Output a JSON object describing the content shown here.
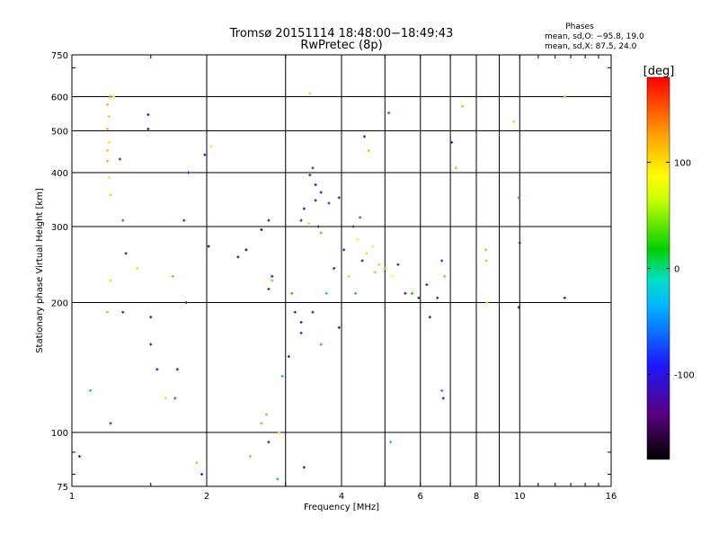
{
  "chart_data": {
    "type": "scatter",
    "title": "Tromsø 20151114 18:48:00−18:49:43",
    "subtitle": "RwPretec (8p)",
    "xlabel": "Frequency [MHz]",
    "ylabel": "Stationary phase Virtual Height [km]",
    "x_scale": "log",
    "y_scale": "log",
    "xlim": [
      1,
      16
    ],
    "ylim": [
      75,
      750
    ],
    "x_ticks": [
      1,
      2,
      4,
      6,
      8,
      10,
      16
    ],
    "x_minor_ticks": [
      3,
      5,
      7,
      9
    ],
    "y_ticks": [
      75,
      100,
      200,
      300,
      400,
      500,
      600,
      750
    ],
    "grid": true,
    "phase_info": {
      "title": "Phases",
      "line_o": "mean, sd,O: −95.8, 19.0",
      "line_x": "mean, sd,X:  87.5, 24.0"
    },
    "colorbar": {
      "label": "[deg]",
      "range": [
        -180,
        180
      ],
      "ticks": [
        100,
        0,
        -100
      ]
    },
    "points": [
      [
        1.04,
        88,
        -120
      ],
      [
        1.1,
        125,
        -30
      ],
      [
        1.22,
        105,
        -80
      ],
      [
        1.22,
        600,
        140
      ],
      [
        1.24,
        600,
        100
      ],
      [
        1.2,
        575,
        120
      ],
      [
        1.21,
        540,
        110
      ],
      [
        1.2,
        505,
        120
      ],
      [
        1.21,
        470,
        100
      ],
      [
        1.2,
        450,
        110
      ],
      [
        1.2,
        425,
        120
      ],
      [
        1.21,
        390,
        100
      ],
      [
        1.22,
        355,
        110
      ],
      [
        1.2,
        190,
        120
      ],
      [
        1.22,
        225,
        110
      ],
      [
        1.3,
        190,
        -100
      ],
      [
        1.28,
        430,
        -80
      ],
      [
        1.3,
        310,
        -60
      ],
      [
        1.32,
        260,
        -100
      ],
      [
        1.4,
        240,
        60
      ],
      [
        1.48,
        545,
        -130
      ],
      [
        1.48,
        505,
        -140
      ],
      [
        1.5,
        185,
        -120
      ],
      [
        1.5,
        160,
        -120
      ],
      [
        1.55,
        140,
        -100
      ],
      [
        1.62,
        120,
        100
      ],
      [
        1.7,
        120,
        -60
      ],
      [
        1.72,
        140,
        -110
      ],
      [
        1.68,
        230,
        40
      ],
      [
        1.78,
        310,
        -90
      ],
      [
        1.8,
        200,
        -110
      ],
      [
        1.82,
        400,
        -100
      ],
      [
        1.9,
        85,
        120
      ],
      [
        1.95,
        80,
        -130
      ],
      [
        1.98,
        440,
        -120
      ],
      [
        2.05,
        460,
        90
      ],
      [
        2.02,
        270,
        -150
      ],
      [
        2.5,
        88,
        130
      ],
      [
        2.65,
        105,
        130
      ],
      [
        2.72,
        110,
        130
      ],
      [
        2.75,
        95,
        -100
      ],
      [
        2.9,
        100,
        110
      ],
      [
        2.88,
        78,
        -40
      ],
      [
        3.3,
        83,
        -100
      ],
      [
        3.4,
        610,
        60
      ],
      [
        4.5,
        485,
        -110
      ],
      [
        4.6,
        450,
        120
      ],
      [
        5.1,
        550,
        -60
      ],
      [
        5.15,
        95,
        -30
      ],
      [
        6.7,
        125,
        -50
      ],
      [
        6.75,
        120,
        -100
      ],
      [
        7.05,
        470,
        -110
      ],
      [
        7.2,
        410,
        120
      ],
      [
        7.45,
        570,
        120
      ],
      [
        8.4,
        265,
        120
      ],
      [
        8.42,
        250,
        120
      ],
      [
        8.45,
        200,
        60
      ],
      [
        9.7,
        525,
        110
      ],
      [
        9.95,
        195,
        -150
      ],
      [
        10.0,
        275,
        -110
      ],
      [
        9.95,
        350,
        20
      ],
      [
        12.6,
        600,
        120
      ],
      [
        12.6,
        205,
        -130
      ],
      [
        2.95,
        135,
        -40
      ],
      [
        3.05,
        150,
        -110
      ],
      [
        3.25,
        170,
        -90
      ],
      [
        3.45,
        190,
        -100
      ],
      [
        3.6,
        160,
        20
      ],
      [
        3.7,
        210,
        -30
      ],
      [
        3.85,
        240,
        -110
      ],
      [
        3.95,
        175,
        -120
      ],
      [
        4.05,
        265,
        -100
      ],
      [
        4.15,
        230,
        60
      ],
      [
        4.3,
        210,
        -40
      ],
      [
        4.45,
        250,
        -120
      ],
      [
        4.55,
        260,
        100
      ],
      [
        4.7,
        270,
        70
      ],
      [
        4.75,
        235,
        120
      ],
      [
        4.85,
        245,
        110
      ],
      [
        5.0,
        240,
        40
      ],
      [
        5.2,
        230,
        90
      ],
      [
        5.35,
        245,
        -110
      ],
      [
        5.55,
        210,
        -100
      ],
      [
        5.75,
        210,
        20
      ],
      [
        5.95,
        205,
        -120
      ],
      [
        6.2,
        220,
        -120
      ],
      [
        6.3,
        185,
        -140
      ],
      [
        6.55,
        205,
        -100
      ],
      [
        6.7,
        250,
        -80
      ],
      [
        6.8,
        230,
        40
      ],
      [
        4.25,
        300,
        -120
      ],
      [
        4.4,
        315,
        -60
      ],
      [
        4.35,
        280,
        80
      ],
      [
        3.4,
        395,
        -100
      ],
      [
        3.45,
        410,
        -80
      ],
      [
        3.5,
        375,
        -120
      ],
      [
        3.6,
        360,
        -110
      ],
      [
        3.75,
        340,
        -80
      ],
      [
        3.95,
        350,
        -110
      ],
      [
        3.55,
        300,
        -130
      ],
      [
        3.6,
        290,
        30
      ],
      [
        3.3,
        330,
        -100
      ],
      [
        3.25,
        310,
        -140
      ],
      [
        3.38,
        305,
        60
      ],
      [
        3.5,
        345,
        -110
      ],
      [
        2.75,
        310,
        -130
      ],
      [
        2.65,
        295,
        -150
      ],
      [
        2.45,
        265,
        -160
      ],
      [
        2.35,
        255,
        -130
      ],
      [
        2.8,
        230,
        -90
      ],
      [
        2.8,
        225,
        40
      ],
      [
        2.75,
        215,
        -120
      ],
      [
        3.1,
        210,
        20
      ],
      [
        3.15,
        190,
        -100
      ],
      [
        3.25,
        180,
        -110
      ]
    ]
  }
}
